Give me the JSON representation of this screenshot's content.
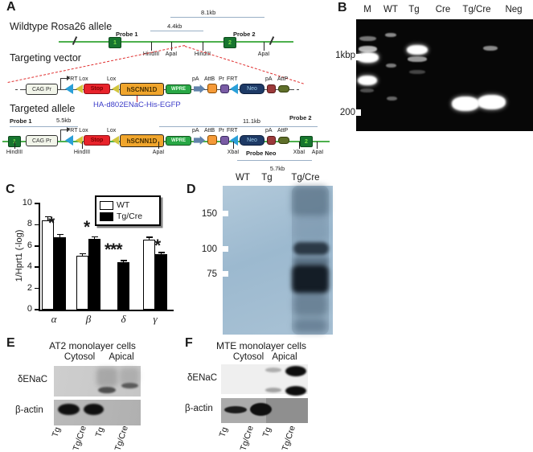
{
  "colors": {
    "allele_line": "#4db04d",
    "frt_blue": "#2a9fd8",
    "lox_yellow": "#d2c63e",
    "stop_red": "#e8232b",
    "scnn_orange": "#f0a52c",
    "wpre_green": "#28a745",
    "neo_navy": "#1e3a66",
    "annotation_blue": "#3b3bc8",
    "dashed_red": "#e03030",
    "blot_blue": "#a3bdd3"
  },
  "panelA": {
    "label": "A",
    "wildtype_title": "Wildtype Rosa26 allele",
    "vector_title": "Targeting vector",
    "targeted_title": "Targeted allele",
    "wildtype": {
      "frag_81": "8.1kb",
      "frag_44": "4.4kb",
      "probe1": "Probe 1",
      "probe2": "Probe 2",
      "probe1_num": "1",
      "probe2_num": "2",
      "site1": "HindIII",
      "site2": "ApaI",
      "site3": "HindIII",
      "site4": "ApaI"
    },
    "construct": {
      "cag": "CAG Pr",
      "frt_lox": "FRT Lox",
      "lox": "Lox",
      "stop": "Stop",
      "hscnn1d": "hSCNN1D",
      "wpre": "WPRE",
      "pa1": "pA",
      "attb": "AttB",
      "pr": "Pr",
      "frt": "FRT",
      "neo": "Neo",
      "pa2": "pA",
      "attp": "AttP",
      "annotation": "HA-d802ENaC-His-EGFP"
    },
    "targeted": {
      "probe1": "Probe 1",
      "frag_55": "5.5kb",
      "frag_111": "11.1kb",
      "probe2": "Probe 2",
      "probe1_num": "1",
      "probe2_num": "2",
      "site_hind1": "HindIII",
      "site_hind2": "HindIII",
      "site_apa1": "ApaI",
      "site_xba1": "XbaI",
      "probe_neo": "Probe Neo",
      "site_xba2": "XbaI",
      "site_apa2": "ApaI",
      "frag_57": "5.7kb"
    }
  },
  "panelB": {
    "label": "B",
    "lanes": [
      "M",
      "WT",
      "Tg",
      "Cre",
      "Tg/Cre",
      "Neg"
    ],
    "marker_1kbp": "1kbp",
    "marker_200": "200"
  },
  "panelC": {
    "label": "C"
  },
  "chart_data": {
    "type": "bar",
    "title": "",
    "xlabel": "",
    "ylabel": "1/Hprt1 (-log)",
    "categories": [
      "α",
      "β",
      "δ",
      "γ"
    ],
    "series": [
      {
        "name": "WT",
        "color": "#ffffff",
        "values": [
          8.4,
          5.1,
          null,
          6.6
        ],
        "errors": [
          0.35,
          0.15,
          null,
          0.2
        ]
      },
      {
        "name": "Tg/Cre",
        "color": "#000000",
        "values": [
          6.8,
          6.65,
          4.45,
          5.2
        ],
        "errors": [
          0.25,
          0.2,
          0.15,
          0.15
        ]
      }
    ],
    "ylim": [
      0,
      10
    ],
    "yticks": [
      0,
      2,
      4,
      6,
      8,
      10
    ],
    "significance": [
      "*",
      "*",
      "***",
      "*"
    ],
    "legend_position": "top-right",
    "grid": false
  },
  "panelD": {
    "label": "D",
    "lanes": [
      "WT",
      "Tg",
      "Tg/Cre"
    ],
    "markers": [
      "150",
      "100",
      "75"
    ]
  },
  "panelE": {
    "label": "E",
    "title": "AT2 monolayer cells",
    "fraction1": "Cytosol",
    "fraction2": "Apical",
    "antibody1": "δENaC",
    "antibody2": "β-actin",
    "lanes": [
      "Tg",
      "Tg/Cre",
      "Tg",
      "Tg/Cre"
    ]
  },
  "panelF": {
    "label": "F",
    "title": "MTE monolayer cells",
    "fraction1": "Cytosol",
    "fraction2": "Apical",
    "antibody1": "δENaC",
    "antibody2": "β-actin",
    "lanes": [
      "Tg",
      "Tg/Cre",
      "Tg",
      "Tg/Cre"
    ]
  }
}
